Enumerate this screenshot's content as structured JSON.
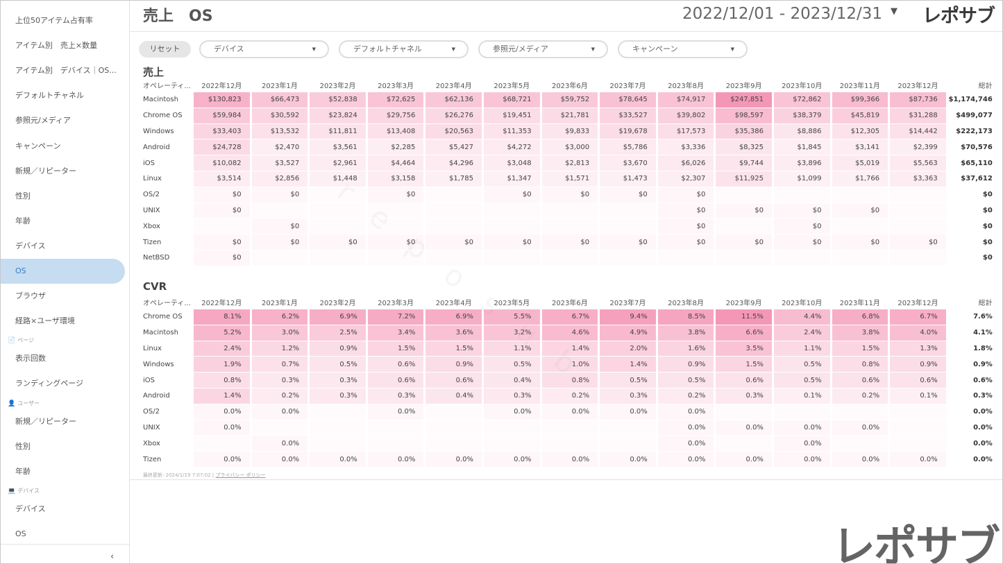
{
  "sidebar": {
    "items": [
      {
        "label": "上位50アイテム占有率",
        "active": false
      },
      {
        "label": "アイテム別　売上×数量",
        "active": false
      },
      {
        "label": "アイテム別　デバイス｜OS...",
        "active": false
      },
      {
        "label": "デフォルトチャネル",
        "active": false
      },
      {
        "label": "参照元/メディア",
        "active": false
      },
      {
        "label": "キャンペーン",
        "active": false
      },
      {
        "label": "新規／リピーター",
        "active": false
      },
      {
        "label": "性別",
        "active": false
      },
      {
        "label": "年齢",
        "active": false
      },
      {
        "label": "デバイス",
        "active": false
      },
      {
        "label": "OS",
        "active": true
      },
      {
        "label": "ブラウザ",
        "active": false
      },
      {
        "label": "経路×ユーザ環境",
        "active": false
      }
    ],
    "sections": [
      {
        "label": "ページ",
        "icon": "document-icon",
        "items": [
          {
            "label": "表示回数"
          },
          {
            "label": "ランディングページ"
          }
        ]
      },
      {
        "label": "ユーザー",
        "icon": "user-icon",
        "items": [
          {
            "label": "新規／リピーター"
          },
          {
            "label": "性別"
          },
          {
            "label": "年齢"
          }
        ]
      },
      {
        "label": "デバイス",
        "icon": "monitor-icon",
        "items": [
          {
            "label": "デバイス"
          },
          {
            "label": "OS"
          }
        ]
      }
    ],
    "collapse_icon": "chevron-left-icon"
  },
  "header": {
    "title": "売上　OS",
    "date_range": "2022/12/01 - 2023/12/31",
    "logo": "レポサブ"
  },
  "filters": {
    "reset_label": "リセット",
    "dropdowns": [
      {
        "label": "デバイス"
      },
      {
        "label": "デフォルトチャネル"
      },
      {
        "label": "参照元/メディア"
      },
      {
        "label": "キャンペーン"
      }
    ]
  },
  "heat_color": "#f283a8",
  "sales_table": {
    "title": "売上",
    "dim_header": "オペレーティ...",
    "total_header": "総計",
    "months": [
      "2022年12月",
      "2023年1月",
      "2023年2月",
      "2023年3月",
      "2023年4月",
      "2023年5月",
      "2023年6月",
      "2023年7月",
      "2023年8月",
      "2023年9月",
      "2023年10月",
      "2023年11月",
      "2023年12月"
    ],
    "rows": [
      {
        "name": "Macintosh",
        "values": [
          "$130,823",
          "$66,473",
          "$52,838",
          "$72,625",
          "$62,136",
          "$68,721",
          "$59,752",
          "$78,645",
          "$74,917",
          "$247,851",
          "$72,862",
          "$99,366",
          "$87,736"
        ],
        "total": "$1,174,746"
      },
      {
        "name": "Chrome OS",
        "values": [
          "$59,984",
          "$30,592",
          "$23,824",
          "$29,756",
          "$26,276",
          "$19,451",
          "$21,781",
          "$33,527",
          "$39,802",
          "$98,597",
          "$38,379",
          "$45,819",
          "$31,288"
        ],
        "total": "$499,077"
      },
      {
        "name": "Windows",
        "values": [
          "$33,403",
          "$13,532",
          "$11,811",
          "$13,408",
          "$20,563",
          "$11,353",
          "$9,833",
          "$19,678",
          "$17,573",
          "$35,386",
          "$8,886",
          "$12,305",
          "$14,442"
        ],
        "total": "$222,173"
      },
      {
        "name": "Android",
        "values": [
          "$24,728",
          "$2,470",
          "$3,561",
          "$2,285",
          "$5,427",
          "$4,272",
          "$3,000",
          "$5,786",
          "$3,336",
          "$8,325",
          "$1,845",
          "$3,141",
          "$2,399"
        ],
        "total": "$70,576"
      },
      {
        "name": "iOS",
        "values": [
          "$10,082",
          "$3,527",
          "$2,961",
          "$4,464",
          "$4,296",
          "$3,048",
          "$2,813",
          "$3,670",
          "$6,026",
          "$9,744",
          "$3,896",
          "$5,019",
          "$5,563"
        ],
        "total": "$65,110"
      },
      {
        "name": "Linux",
        "values": [
          "$3,514",
          "$2,856",
          "$1,448",
          "$3,158",
          "$1,785",
          "$1,347",
          "$1,571",
          "$1,473",
          "$2,307",
          "$11,925",
          "$1,099",
          "$1,766",
          "$3,363"
        ],
        "total": "$37,612"
      },
      {
        "name": "OS/2",
        "values": [
          "$0",
          "$0",
          "",
          "$0",
          "",
          "$0",
          "$0",
          "$0",
          "$0",
          "",
          "",
          "",
          ""
        ],
        "total": "$0"
      },
      {
        "name": "UNIX",
        "values": [
          "$0",
          "",
          "",
          "",
          "",
          "",
          "",
          "",
          "$0",
          "$0",
          "$0",
          "$0",
          ""
        ],
        "total": "$0"
      },
      {
        "name": "Xbox",
        "values": [
          "",
          "$0",
          "",
          "",
          "",
          "",
          "",
          "",
          "$0",
          "",
          "$0",
          "",
          ""
        ],
        "total": "$0"
      },
      {
        "name": "Tizen",
        "values": [
          "$0",
          "$0",
          "$0",
          "$0",
          "$0",
          "$0",
          "$0",
          "$0",
          "$0",
          "$0",
          "$0",
          "$0",
          "$0"
        ],
        "total": "$0"
      },
      {
        "name": "NetBSD",
        "values": [
          "$0",
          "",
          "",
          "",
          "",
          "",
          "",
          "",
          "",
          "",
          "",
          "",
          ""
        ],
        "total": "$0"
      }
    ]
  },
  "cvr_table": {
    "title": "CVR",
    "dim_header": "オペレーティ...",
    "total_header": "総計",
    "months": [
      "2022年12月",
      "2023年1月",
      "2023年2月",
      "2023年3月",
      "2023年4月",
      "2023年5月",
      "2023年6月",
      "2023年7月",
      "2023年8月",
      "2023年9月",
      "2023年10月",
      "2023年11月",
      "2023年12月"
    ],
    "rows": [
      {
        "name": "Chrome OS",
        "values": [
          "8.1%",
          "6.2%",
          "6.9%",
          "7.2%",
          "6.9%",
          "5.5%",
          "6.7%",
          "9.4%",
          "8.5%",
          "11.5%",
          "4.4%",
          "6.8%",
          "6.7%"
        ],
        "total": "7.6%"
      },
      {
        "name": "Macintosh",
        "values": [
          "5.2%",
          "3.0%",
          "2.5%",
          "3.4%",
          "3.6%",
          "3.2%",
          "4.6%",
          "4.9%",
          "3.8%",
          "6.6%",
          "2.4%",
          "3.8%",
          "4.0%"
        ],
        "total": "4.1%"
      },
      {
        "name": "Linux",
        "values": [
          "2.4%",
          "1.2%",
          "0.9%",
          "1.5%",
          "1.5%",
          "1.1%",
          "1.4%",
          "2.0%",
          "1.6%",
          "3.5%",
          "1.1%",
          "1.5%",
          "1.3%"
        ],
        "total": "1.8%"
      },
      {
        "name": "Windows",
        "values": [
          "1.9%",
          "0.7%",
          "0.5%",
          "0.6%",
          "0.9%",
          "0.5%",
          "1.0%",
          "1.4%",
          "0.9%",
          "1.5%",
          "0.5%",
          "0.8%",
          "0.9%"
        ],
        "total": "0.9%"
      },
      {
        "name": "iOS",
        "values": [
          "0.8%",
          "0.3%",
          "0.3%",
          "0.6%",
          "0.6%",
          "0.4%",
          "0.8%",
          "0.5%",
          "0.5%",
          "0.6%",
          "0.5%",
          "0.6%",
          "0.6%"
        ],
        "total": "0.6%"
      },
      {
        "name": "Android",
        "values": [
          "1.4%",
          "0.2%",
          "0.3%",
          "0.3%",
          "0.4%",
          "0.3%",
          "0.2%",
          "0.3%",
          "0.2%",
          "0.3%",
          "0.1%",
          "0.2%",
          "0.1%"
        ],
        "total": "0.3%"
      },
      {
        "name": "OS/2",
        "values": [
          "0.0%",
          "0.0%",
          "",
          "0.0%",
          "",
          "0.0%",
          "0.0%",
          "0.0%",
          "0.0%",
          "",
          "",
          "",
          ""
        ],
        "total": "0.0%"
      },
      {
        "name": "UNIX",
        "values": [
          "0.0%",
          "",
          "",
          "",
          "",
          "",
          "",
          "",
          "0.0%",
          "0.0%",
          "0.0%",
          "0.0%",
          ""
        ],
        "total": "0.0%"
      },
      {
        "name": "Xbox",
        "values": [
          "",
          "0.0%",
          "",
          "",
          "",
          "",
          "",
          "",
          "0.0%",
          "",
          "0.0%",
          "",
          ""
        ],
        "total": "0.0%"
      },
      {
        "name": "Tizen",
        "values": [
          "0.0%",
          "0.0%",
          "0.0%",
          "0.0%",
          "0.0%",
          "0.0%",
          "0.0%",
          "0.0%",
          "0.0%",
          "0.0%",
          "0.0%",
          "0.0%",
          "0.0%"
        ],
        "total": "0.0%"
      }
    ]
  },
  "footer": {
    "update_text": "最終更新: 2024/1/19 7:07:02",
    "separator": "|",
    "privacy_link": "プライバシー ポリシー"
  },
  "watermark": "reposub",
  "logo_big": "レポサブ"
}
